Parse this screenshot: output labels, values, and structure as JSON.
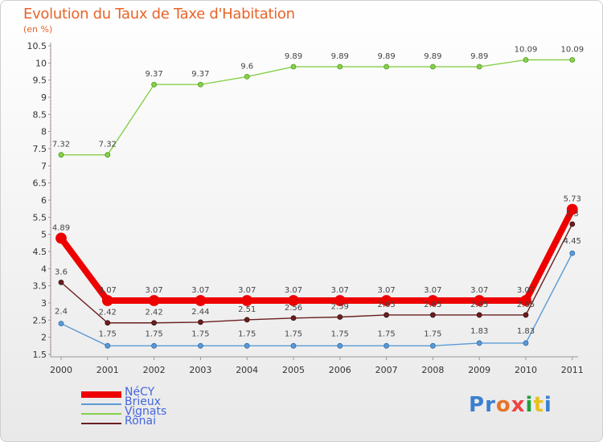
{
  "title": "Evolution du Taux de Taxe d'Habitation",
  "subtitle": "(en %)",
  "logo": {
    "text": "Proxiti",
    "colors": [
      "#3a7fd0",
      "#3a7fd0",
      "#e8732a",
      "#ef4444",
      "#22a03a",
      "#e8c020",
      "#3a7fd0"
    ]
  },
  "chart_data": {
    "type": "line",
    "x": [
      "2000",
      "2001",
      "2002",
      "2003",
      "2004",
      "2005",
      "2006",
      "2007",
      "2008",
      "2009",
      "2010",
      "2011"
    ],
    "ylim": [
      1.5,
      10.5
    ],
    "yticks": [
      "1.5",
      "2",
      "2.5",
      "3",
      "3.5",
      "4",
      "4.5",
      "5",
      "5.5",
      "6",
      "6.5",
      "7",
      "7.5",
      "8",
      "8.5",
      "9",
      "9.5",
      "10",
      "10.5"
    ],
    "grid": false,
    "legend": "bottom-left",
    "series": [
      {
        "name": "NéCY",
        "color": "#ee0000",
        "values": [
          4.89,
          3.07,
          3.07,
          3.07,
          3.07,
          3.07,
          3.07,
          3.07,
          3.07,
          3.07,
          3.07,
          5.73
        ],
        "labels": [
          "4.89",
          "3.07",
          "3.07",
          "3.07",
          "3.07",
          "3.07",
          "3.07",
          "3.07",
          "3.07",
          "3.07",
          "3.07",
          "5.73"
        ]
      },
      {
        "name": "Brieux",
        "color": "#5b9bd5",
        "values": [
          2.4,
          1.75,
          1.75,
          1.75,
          1.75,
          1.75,
          1.75,
          1.75,
          1.75,
          1.83,
          1.83,
          4.45
        ],
        "labels": [
          "2.4",
          "1.75",
          "1.75",
          "1.75",
          "1.75",
          "1.75",
          "1.75",
          "1.75",
          "1.75",
          "1.83",
          "1.83",
          "4.45"
        ]
      },
      {
        "name": "Vignats",
        "color": "#88d04b",
        "values": [
          7.32,
          7.32,
          9.37,
          9.37,
          9.6,
          9.89,
          9.89,
          9.89,
          9.89,
          9.89,
          10.09,
          10.09
        ],
        "labels": [
          "7.32",
          "7.32",
          "9.37",
          "9.37",
          "9.6",
          "9.89",
          "9.89",
          "9.89",
          "9.89",
          "9.89",
          "10.09",
          "10.09"
        ]
      },
      {
        "name": "Rônai",
        "color": "#6b1f1f",
        "values": [
          3.6,
          2.42,
          2.42,
          2.44,
          2.51,
          2.56,
          2.59,
          2.65,
          2.65,
          2.65,
          2.65,
          5.3
        ],
        "labels": [
          "3.6",
          "2.42",
          "2.42",
          "2.44",
          "2.51",
          "2.56",
          "2.59",
          "2.65",
          "2.65",
          "2.65",
          "2.65",
          "5.3"
        ]
      }
    ]
  }
}
